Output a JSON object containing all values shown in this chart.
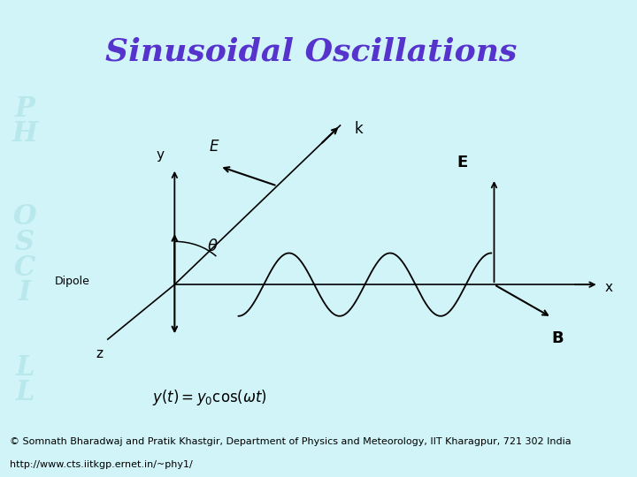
{
  "title": "Sinusoidal Oscillations",
  "title_color": "#5533CC",
  "title_fontsize": 26,
  "bg_outer": "#D0F4F8",
  "bg_inner": "#FFFFFF",
  "copyright_line1": "© Somnath Bharadwaj and Pratik Khastgir, Department of Physics and Meteorology, IIT Kharagpur, 721 302 India",
  "copyright_line2": "http://www.cts.iitkgp.ernet.in/~phy1/",
  "copyright_fontsize": 8.0,
  "watermark_color": "#B8E8EC"
}
